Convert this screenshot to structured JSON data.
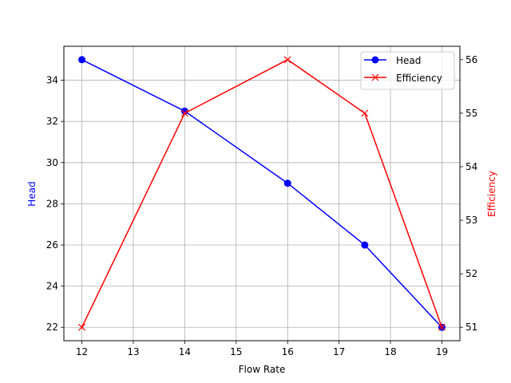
{
  "chart_data": {
    "type": "line",
    "title": "",
    "xlabel": "Flow Rate",
    "x": [
      12,
      14,
      16,
      17.5,
      19
    ],
    "xlim": [
      11.65,
      19.35
    ],
    "xticks": [
      12,
      13,
      14,
      15,
      16,
      17,
      18,
      19
    ],
    "series": [
      {
        "name": "Head",
        "axis": "left",
        "color": "#0000ff",
        "marker": "circle",
        "values": [
          35,
          32.5,
          29,
          26,
          22
        ]
      },
      {
        "name": "Efficiency",
        "axis": "right",
        "color": "#ff0000",
        "marker": "x",
        "values": [
          51,
          55,
          56,
          55,
          51
        ]
      }
    ],
    "ylabel_left": "Head",
    "ylabel_left_color": "#0000ff",
    "ylim_left": [
      21.35,
      35.65
    ],
    "yticks_left": [
      22,
      24,
      26,
      28,
      30,
      32,
      34
    ],
    "ylabel_right": "Efficiency",
    "ylabel_right_color": "#ff0000",
    "ylim_right": [
      50.75,
      56.25
    ],
    "yticks_right": [
      51,
      52,
      53,
      54,
      55,
      56
    ],
    "grid": true,
    "legend": {
      "position": "upper right",
      "entries": [
        "Head",
        "Efficiency"
      ]
    }
  }
}
